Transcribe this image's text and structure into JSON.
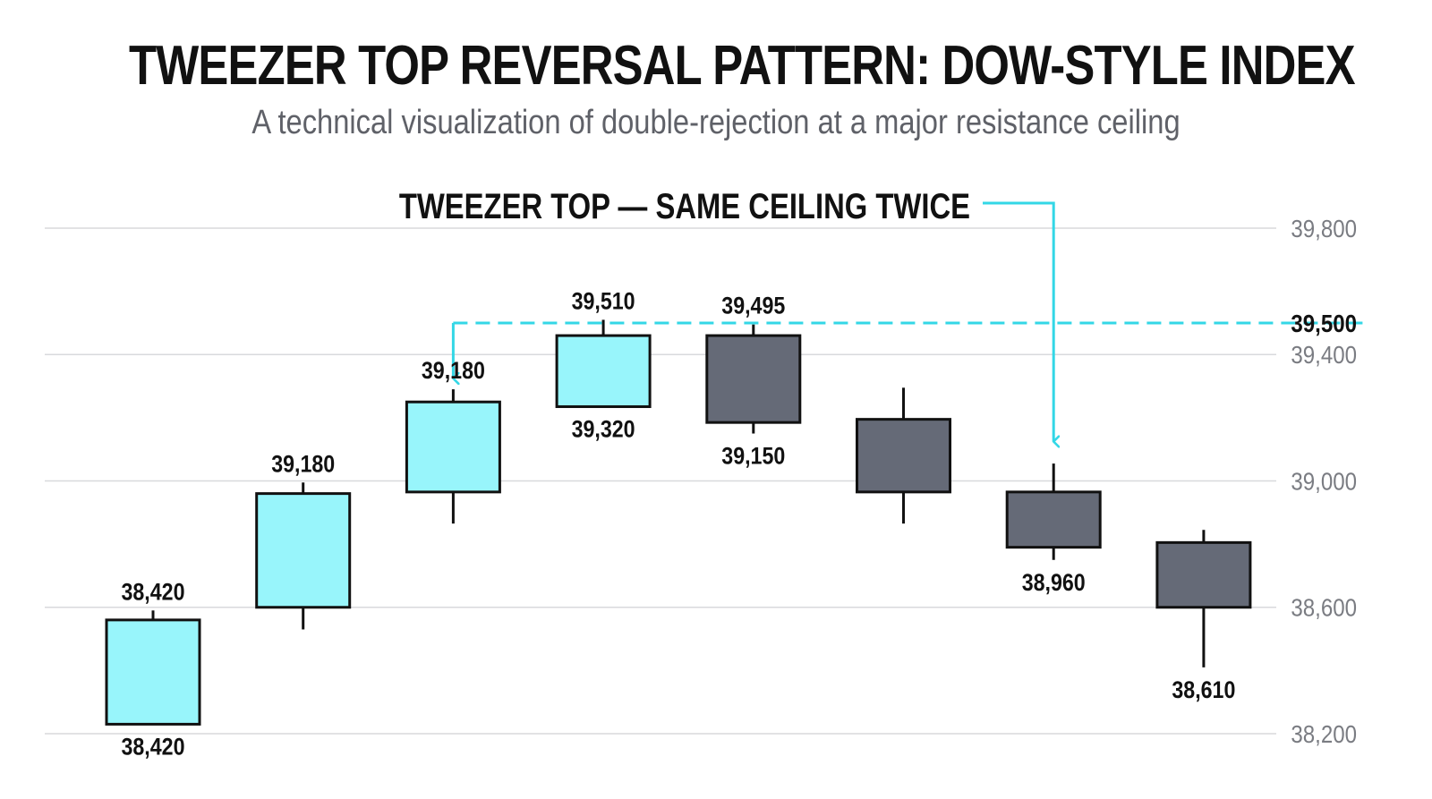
{
  "colors": {
    "bullish": "#98f5fb",
    "bearish": "#656a77",
    "outline": "#111111",
    "accent": "#33d7e6",
    "grid": "#d8d9dc",
    "tick_text": "#7a7c82"
  },
  "chart_data": {
    "type": "candlestick",
    "title": "TWEEZER TOP REVERSAL PATTERN: DOW-STYLE INDEX",
    "subtitle": "A technical visualization of double-rejection at a major resistance ceiling",
    "ylim": [
      38200,
      39800
    ],
    "grid": true,
    "y_axis_position": "right",
    "y_ticks": [
      {
        "value": 39800,
        "label": "39,800",
        "emphasis": false
      },
      {
        "value": 39500,
        "label": "39,500",
        "emphasis": true
      },
      {
        "value": 39400,
        "label": "39,400",
        "emphasis": false
      },
      {
        "value": 39000,
        "label": "39,000",
        "emphasis": false
      },
      {
        "value": 38600,
        "label": "38,600",
        "emphasis": false
      },
      {
        "value": 38200,
        "label": "38,200",
        "emphasis": false
      }
    ],
    "candles": [
      {
        "open": 38230,
        "close": 38560,
        "high": 38590,
        "low": 38230,
        "direction": "up",
        "top_label": "38,420",
        "bottom_label": "38,420"
      },
      {
        "open": 38600,
        "close": 38960,
        "high": 38995,
        "low": 38530,
        "direction": "up",
        "top_label": "39,180",
        "bottom_label": ""
      },
      {
        "open": 38965,
        "close": 39250,
        "high": 39290,
        "low": 38865,
        "direction": "up",
        "top_label": "39,180",
        "bottom_label": ""
      },
      {
        "open": 39235,
        "close": 39460,
        "high": 39510,
        "low": 39235,
        "direction": "up",
        "top_label": "39,510",
        "bottom_label": "39,320"
      },
      {
        "open": 39460,
        "close": 39185,
        "high": 39495,
        "low": 39150,
        "direction": "down",
        "top_label": "39,495",
        "bottom_label": "39,150"
      },
      {
        "open": 39195,
        "close": 38965,
        "high": 39295,
        "low": 38865,
        "direction": "down",
        "top_label": "",
        "bottom_label": ""
      },
      {
        "open": 38965,
        "close": 38790,
        "high": 39055,
        "low": 38750,
        "direction": "down",
        "top_label": "",
        "bottom_label": "38,960"
      },
      {
        "open": 38805,
        "close": 38600,
        "high": 38845,
        "low": 38410,
        "direction": "down",
        "top_label": "",
        "bottom_label": "38,610"
      }
    ],
    "resistance": {
      "value": 39500,
      "label": "39,500"
    },
    "annotation": {
      "text": "TWEEZER TOP — SAME CEILING TWICE"
    }
  }
}
